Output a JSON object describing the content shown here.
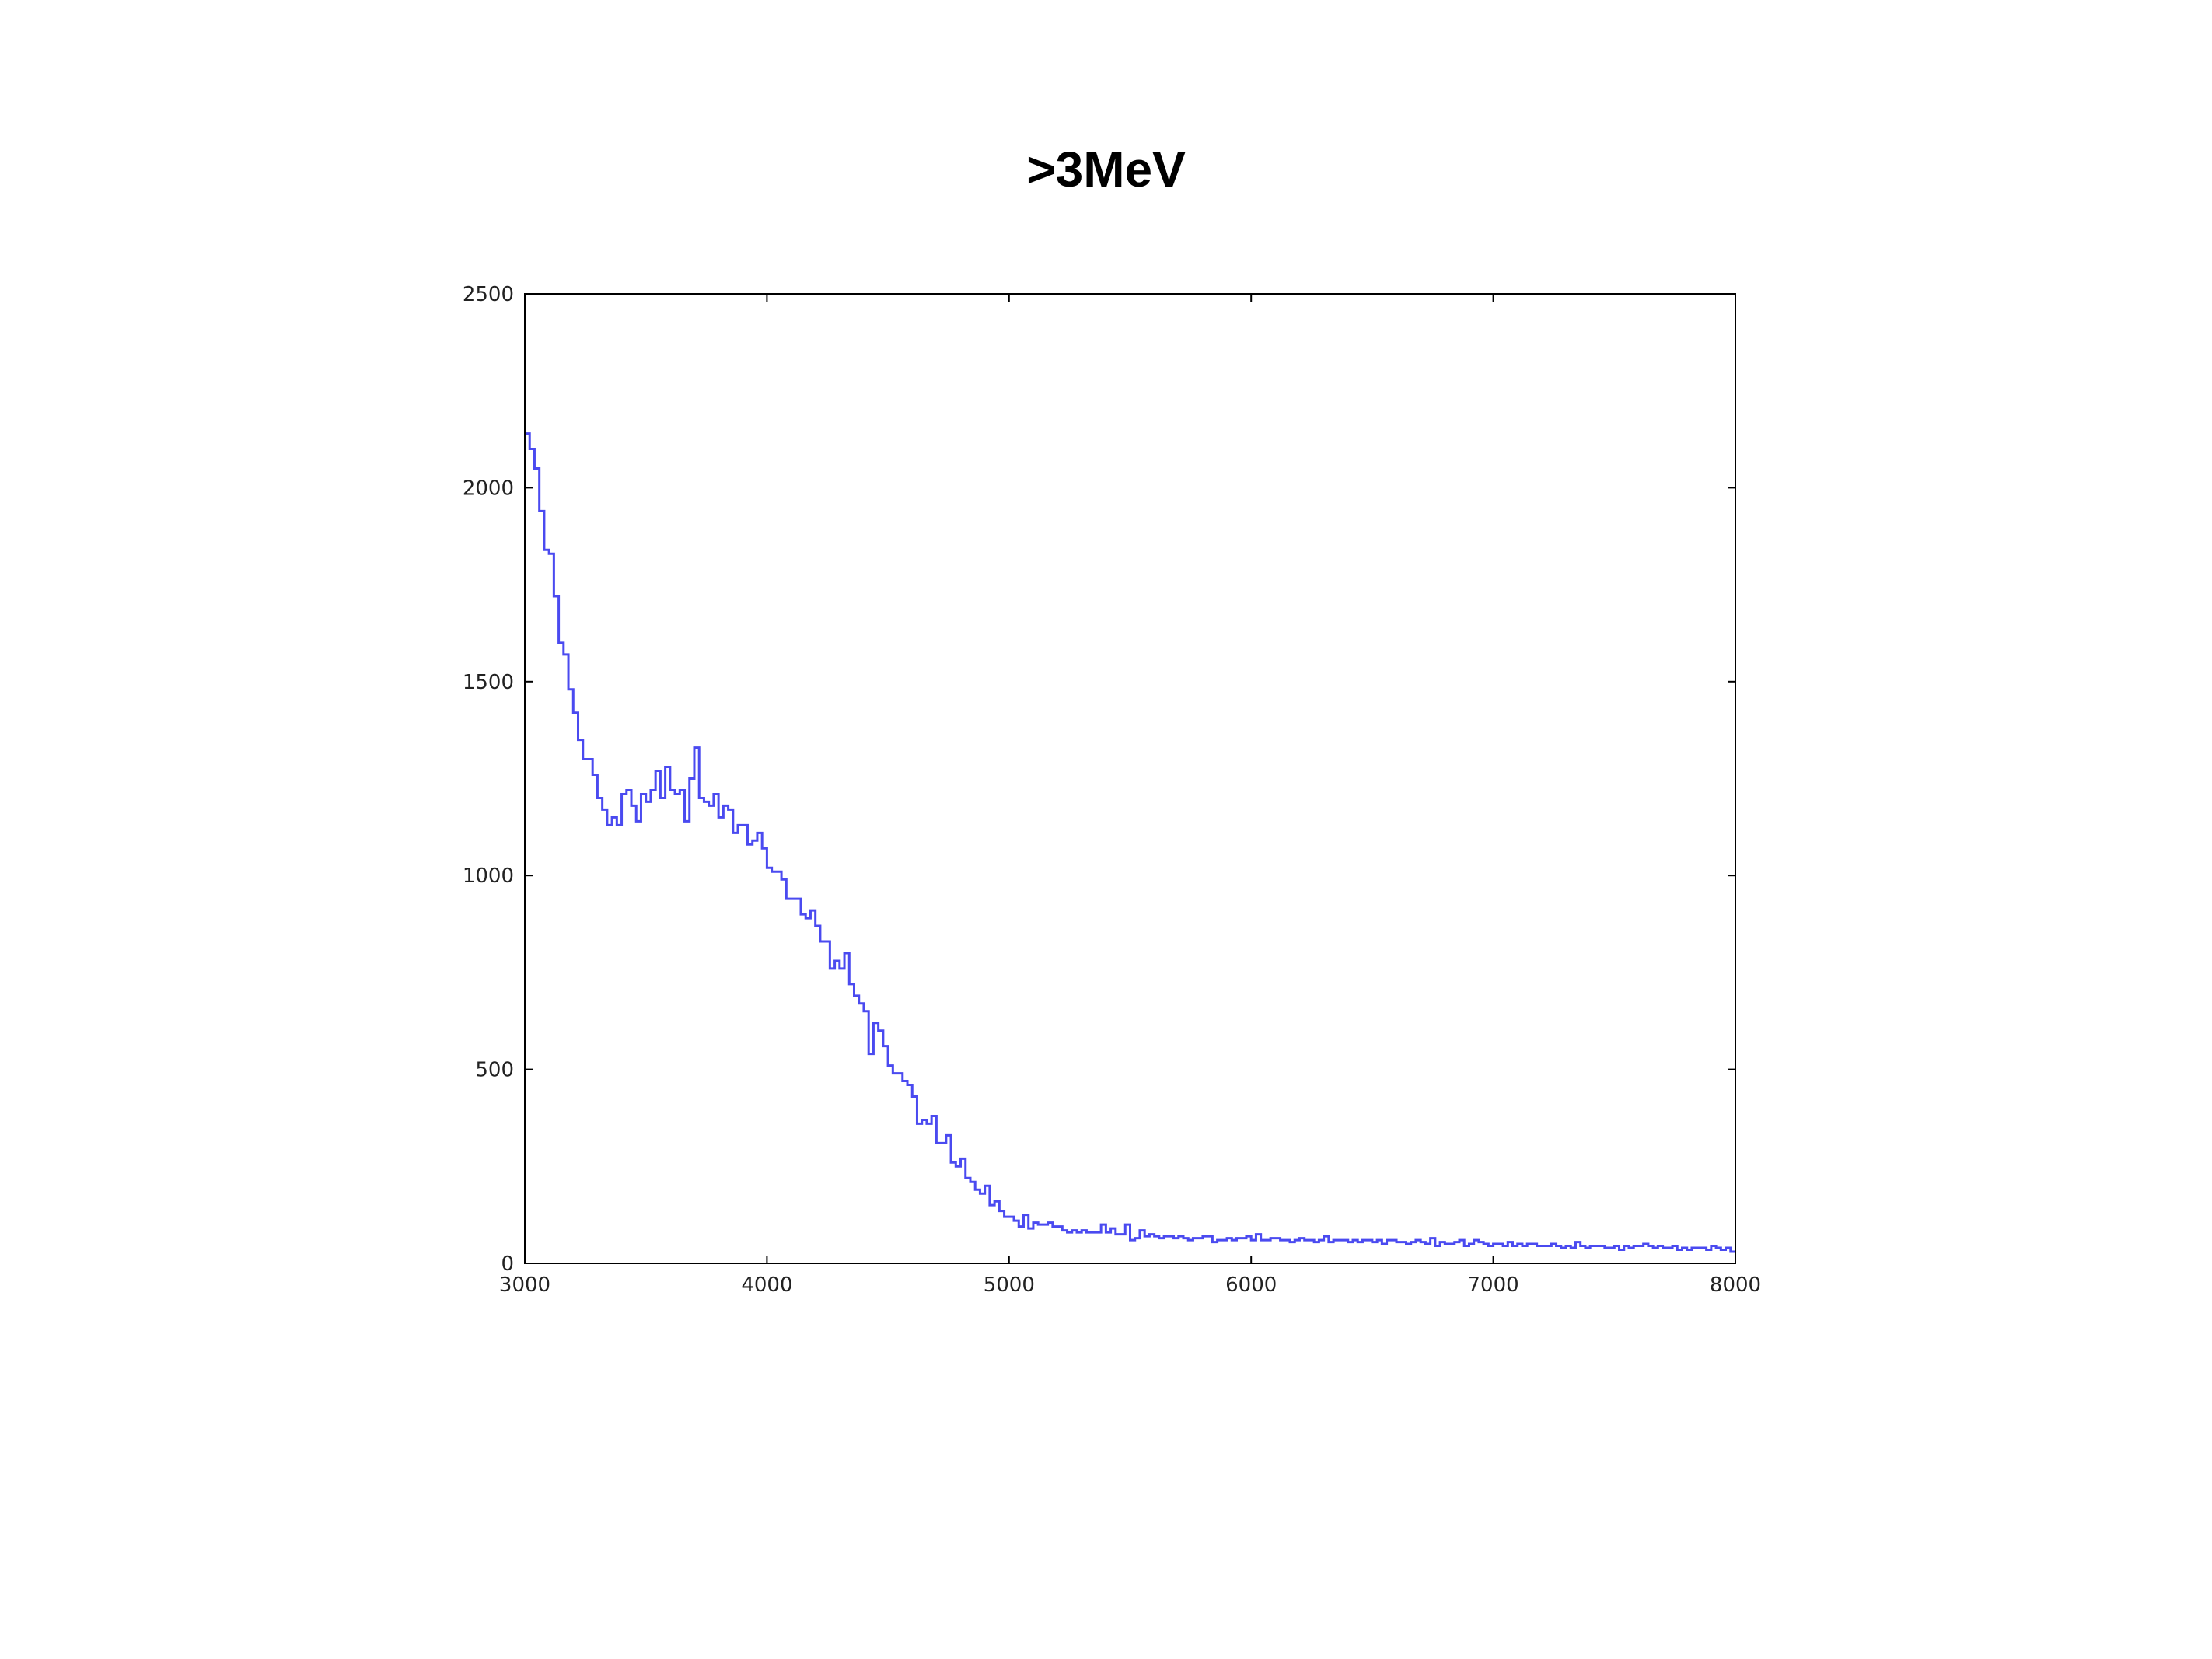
{
  "slide": {
    "title": ">3MeV"
  },
  "chart_data": {
    "type": "line",
    "style": "step-histogram",
    "title": "",
    "xlabel": "",
    "ylabel": "",
    "xlim": [
      3000,
      8000
    ],
    "ylim": [
      0,
      2500
    ],
    "grid": false,
    "legend": "none",
    "x_ticks": [
      3000,
      4000,
      5000,
      6000,
      7000,
      8000
    ],
    "y_ticks": [
      0,
      500,
      1000,
      1500,
      2000,
      2500
    ],
    "x_tick_labels": [
      "3000",
      "4000",
      "5000",
      "6000",
      "7000",
      "8000"
    ],
    "y_tick_labels": [
      "0",
      "500",
      "1000",
      "1500",
      "2000",
      "2500"
    ],
    "series_color": "#4a4af0",
    "bin_width": 20,
    "series": [
      {
        "bin_edges_start": 3000,
        "counts": [
          2140,
          2100,
          2050,
          1940,
          1840,
          1830,
          1720,
          1600,
          1570,
          1480,
          1420,
          1350,
          1300,
          1300,
          1260,
          1200,
          1170,
          1130,
          1150,
          1130,
          1210,
          1220,
          1180,
          1140,
          1210,
          1190,
          1220,
          1270,
          1200,
          1280,
          1220,
          1210,
          1220,
          1140,
          1250,
          1330,
          1200,
          1190,
          1180,
          1210,
          1150,
          1180,
          1170,
          1110,
          1130,
          1130,
          1080,
          1090,
          1110,
          1070,
          1020,
          1010,
          1010,
          990,
          940,
          940,
          940,
          900,
          890,
          910,
          870,
          830,
          830,
          760,
          780,
          760,
          800,
          720,
          690,
          670,
          650,
          540,
          620,
          600,
          560,
          510,
          490,
          490,
          470,
          460,
          430,
          360,
          370,
          360,
          380,
          310,
          310,
          330,
          260,
          250,
          270,
          220,
          210,
          190,
          180,
          200,
          150,
          160,
          135,
          120,
          120,
          110,
          95,
          125,
          90,
          105,
          100,
          100,
          105,
          95,
          95,
          85,
          80,
          85,
          80,
          85,
          80,
          80,
          80,
          100,
          80,
          90,
          75,
          75,
          100,
          60,
          65,
          85,
          70,
          75,
          70,
          65,
          70,
          70,
          65,
          70,
          65,
          60,
          65,
          65,
          70,
          70,
          55,
          60,
          60,
          65,
          60,
          65,
          65,
          70,
          60,
          75,
          60,
          60,
          65,
          65,
          60,
          60,
          55,
          60,
          65,
          60,
          60,
          55,
          60,
          70,
          55,
          60,
          60,
          60,
          55,
          60,
          55,
          60,
          60,
          55,
          60,
          50,
          60,
          60,
          55,
          55,
          50,
          55,
          60,
          55,
          50,
          65,
          45,
          55,
          50,
          50,
          55,
          60,
          45,
          50,
          60,
          55,
          50,
          45,
          50,
          50,
          45,
          55,
          45,
          50,
          45,
          50,
          50,
          45,
          45,
          45,
          50,
          45,
          40,
          45,
          40,
          55,
          45,
          40,
          45,
          45,
          45,
          40,
          40,
          45,
          35,
          45,
          40,
          45,
          45,
          50,
          45,
          40,
          45,
          40,
          40,
          45,
          35,
          40,
          35,
          40,
          40,
          40,
          35,
          45,
          40,
          35,
          40,
          30
        ]
      }
    ]
  }
}
